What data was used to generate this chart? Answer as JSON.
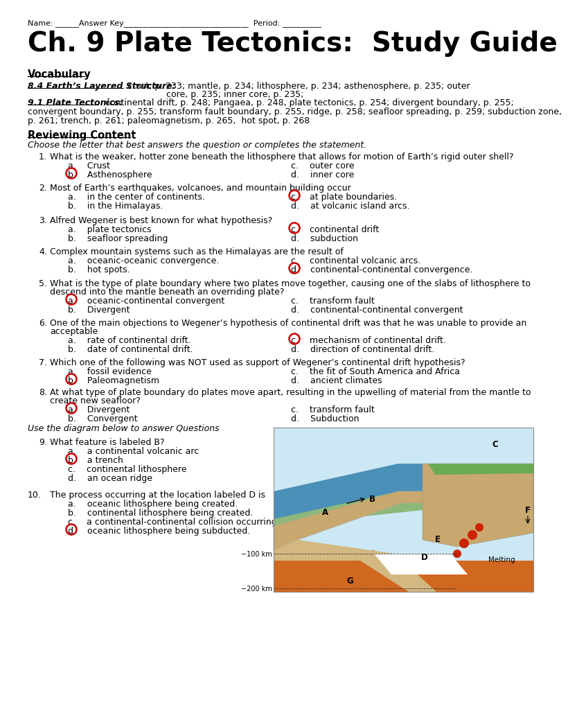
{
  "bg_color": "#ffffff",
  "title": "Ch. 9 Plate Tectonics:  Study Guide",
  "name_line": "Name: ______Answer Key________________________________  Period: __________",
  "vocab_header": "Vocabulary",
  "vocab_84_bold": "8.4 Earth’s Layered Structure:",
  "vocab_84_rest": " crust, p. 233; mantle, p. 234; lithosphere, p. 234; asthenosphere, p. 235; outer",
  "vocab_84_line2": "                    core, p. 235; inner core, p. 235;",
  "vocab_91_bold": "9.1 Plate Tectonics:",
  "vocab_91_rest": "  continental drift, p. 248; Pangaea, p. 248, plate tectonics, p. 254; divergent boundary, p. 255;",
  "vocab_91_line2": "convergent boundary, p. 255; transform fault boundary, p. 255, ridge, p. 258; seafloor spreading, p. 259; subduction zone,",
  "vocab_91_line3": "p. 261; trench, p. 261; paleomagnetism, p. 265,  hot spot, p. 268",
  "review_header": "Reviewing Content",
  "review_sub": "Choose the letter that best answers the question or completes the statement.",
  "q1_text": "What is the weaker, hotter zone beneath the lithosphere that allows for motion of Earth’s rigid outer shell?",
  "q1_a": "a.    Crust",
  "q1_b": "b.    Asthenosphere",
  "q1_c": "c.    outer core",
  "q1_d": "d.    inner core",
  "q1_ans": "b",
  "q2_text": "Most of Earth’s earthquakes, volcanoes, and mountain building occur",
  "q2_a": "a.    in the center of continents.",
  "q2_b": "b.    in the Himalayas.",
  "q2_c": "c.    at plate boundaries.",
  "q2_d": "d.    at volcanic island arcs.",
  "q2_ans": "c",
  "q3_text": "Alfred Wegener is best known for what hypothesis?",
  "q3_a": "a.    plate tectonics",
  "q3_b": "b.    seafloor spreading",
  "q3_c": "c.    continental drift",
  "q3_d": "d.    subduction",
  "q3_ans": "c",
  "q4_text": "Complex mountain systems such as the Himalayas are the result of",
  "q4_a": "a.    oceanic-oceanic convergence.",
  "q4_b": "b.    hot spots.",
  "q4_c": "c.    continental volcanic arcs.",
  "q4_d": "d.    continental-continental convergence.",
  "q4_ans": "d",
  "q5_text": "What is the type of plate boundary where two plates move together, causing one of the slabs of lithosphere to\n        descend into the mantle beneath an overriding plate?",
  "q5_a": "a.    oceanic-continental convergent",
  "q5_b": "b.    Divergent",
  "q5_c": "c.    transform fault",
  "q5_d": "d.    continental-continental convergent",
  "q5_ans": "a",
  "q6_text": "One of the main objections to Wegener’s hypothesis of continental drift was that he was unable to provide an\n        acceptable",
  "q6_a": "a.    rate of continental drift.",
  "q6_b": "b.    date of continental drift.",
  "q6_c": "c.    mechanism of continental drift.",
  "q6_d": "d.    direction of continental drift.",
  "q6_ans": "c",
  "q7_text": "Which one of the following was NOT used as support of Wegener’s continental drift hypothesis?",
  "q7_a": "a.    fossil evidence",
  "q7_b": "b.    Paleomagnetism",
  "q7_c": "c.    the fit of South America and Africa",
  "q7_d": "d.    ancient climates",
  "q7_ans": "b",
  "q8_text": "At what type of plate boundary do plates move apart, resulting in the upwelling of material from the mantle to\n        create new seafloor?",
  "q8_a": "a.    Divergent",
  "q8_b": "b.    Convergent",
  "q8_c": "c.    transform fault",
  "q8_d": "d.    Subduction",
  "q8_ans": "a",
  "diagram_intro": "Use the diagram below to answer Questions",
  "q9_text": "What feature is labeled B?",
  "q9_a": "a.    a continental volcanic arc",
  "q9_b": "b.    a trench",
  "q9_c": "c.    continental lithosphere",
  "q9_d": "d.    an ocean ridge",
  "q9_ans": "b",
  "q10_text": "The process occurring at the location labeled D is",
  "q10_a": "a.    oceanic lithosphere being created.",
  "q10_b": "b.    continental lithosphere being created.",
  "q10_c": "c.    a continental-continental collision occurring.",
  "q10_d": "d.    oceanic lithosphere being subducted.",
  "q10_ans": "d",
  "circle_color": "#cc0000",
  "text_color": "#000000",
  "title_font_size": 28,
  "body_font_size": 9,
  "header_font_size": 10.5
}
